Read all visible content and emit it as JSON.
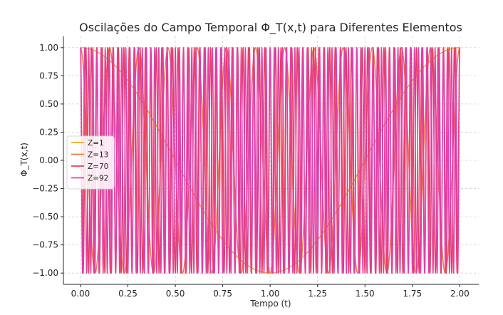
{
  "chart_data": {
    "type": "line",
    "title": "Oscilações do Campo Temporal Φ_T(x,t) para Diferentes Elementos",
    "xlabel": "Tempo (t)",
    "ylabel": "Φ_T(x,t)",
    "xlim": [
      -0.09,
      2.1
    ],
    "ylim": [
      -1.1,
      1.1
    ],
    "xticks": [
      0.0,
      0.25,
      0.5,
      0.75,
      1.0,
      1.25,
      1.5,
      1.75,
      2.0
    ],
    "xtick_labels": [
      "0.00",
      "0.25",
      "0.50",
      "0.75",
      "1.00",
      "1.25",
      "1.50",
      "1.75",
      "2.00"
    ],
    "yticks": [
      -1.0,
      -0.75,
      -0.5,
      -0.25,
      0.0,
      0.25,
      0.5,
      0.75,
      1.0
    ],
    "ytick_labels": [
      "−1.00",
      "−0.75",
      "−0.50",
      "−0.25",
      "0.00",
      "0.25",
      "0.50",
      "0.75",
      "1.00"
    ],
    "grid": true,
    "legend_position": "center-left",
    "x_range": [
      0,
      2
    ],
    "series": [
      {
        "name": "Z=1",
        "frequency_cycles_per_unit": 0.5,
        "color": "#f5a623"
      },
      {
        "name": "Z=13",
        "frequency_cycles_per_unit": 6.5,
        "color": "#f07a3c"
      },
      {
        "name": "Z=70",
        "frequency_cycles_per_unit": 35,
        "color": "#e5405e"
      },
      {
        "name": "Z=92",
        "frequency_cycles_per_unit": 46,
        "color": "#e040a8"
      }
    ]
  }
}
